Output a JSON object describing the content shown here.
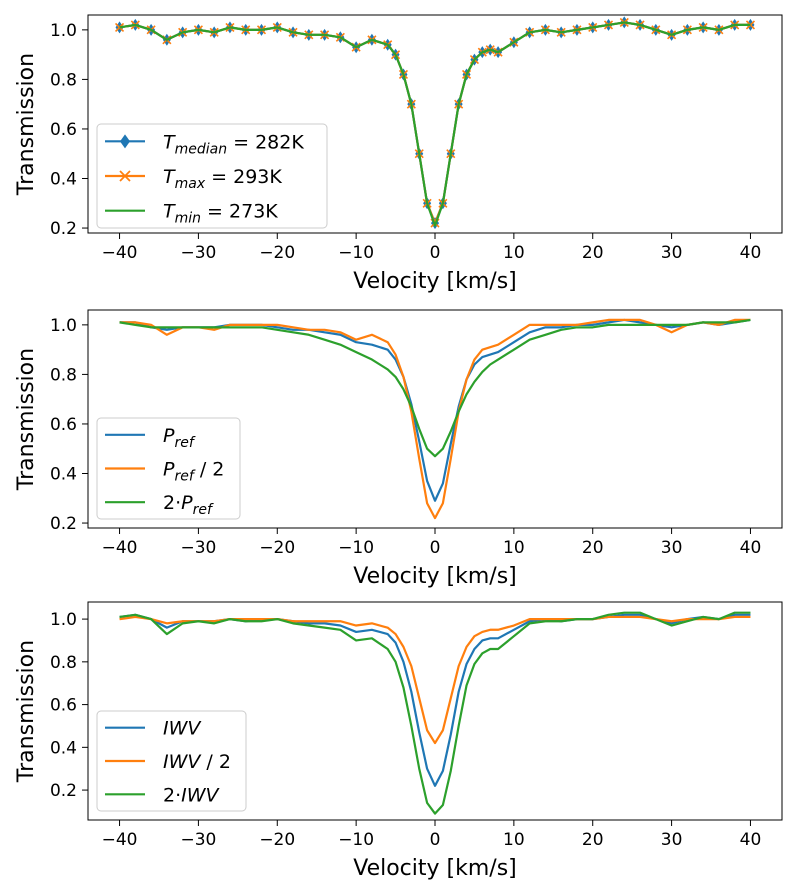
{
  "colors": {
    "blue": "#1f77b4",
    "orange": "#ff7f0e",
    "green": "#2ca02c"
  },
  "chart_data": [
    {
      "type": "line",
      "title": "",
      "xlabel": "Velocity [km/s]",
      "ylabel": "Transmission",
      "xlim": [
        -44,
        44
      ],
      "ylim": [
        0.18,
        1.06
      ],
      "xticks": [
        -40,
        -30,
        -20,
        -10,
        0,
        10,
        20,
        30,
        40
      ],
      "yticks": [
        0.2,
        0.4,
        0.6,
        0.8,
        1.0
      ],
      "ytick_labels": [
        "0.2",
        "0.4",
        "0.6",
        "0.8",
        "1.0"
      ],
      "legend_loc": "lower-left",
      "x": [
        -40,
        -38,
        -36,
        -34,
        -32,
        -30,
        -28,
        -26,
        -24,
        -22,
        -20,
        -18,
        -16,
        -14,
        -12,
        -10,
        -8,
        -6,
        -5,
        -4,
        -3,
        -2,
        -1,
        0,
        1,
        2,
        3,
        4,
        5,
        6,
        7,
        8,
        10,
        12,
        14,
        16,
        18,
        20,
        22,
        24,
        26,
        28,
        30,
        32,
        34,
        36,
        38,
        40
      ],
      "series": [
        {
          "name": "median",
          "label_main": "T",
          "label_sub": "median",
          "label_rest": " = 282K",
          "color": "#1f77b4",
          "marker": "diamond",
          "values": [
            1.01,
            1.02,
            1.0,
            0.96,
            0.99,
            1.0,
            0.99,
            1.01,
            1.0,
            1.0,
            1.01,
            0.99,
            0.98,
            0.98,
            0.97,
            0.93,
            0.96,
            0.94,
            0.9,
            0.82,
            0.7,
            0.5,
            0.3,
            0.22,
            0.3,
            0.5,
            0.7,
            0.82,
            0.88,
            0.91,
            0.92,
            0.91,
            0.95,
            0.99,
            1.0,
            0.99,
            1.0,
            1.01,
            1.02,
            1.03,
            1.02,
            1.0,
            0.98,
            1.0,
            1.01,
            1.0,
            1.02,
            1.02
          ]
        },
        {
          "name": "max",
          "label_main": "T",
          "label_sub": "max",
          "label_rest": " = 293K",
          "color": "#ff7f0e",
          "marker": "x",
          "values": [
            1.01,
            1.02,
            1.0,
            0.96,
            0.99,
            1.0,
            0.99,
            1.01,
            1.0,
            1.0,
            1.01,
            0.99,
            0.98,
            0.98,
            0.97,
            0.93,
            0.96,
            0.94,
            0.9,
            0.82,
            0.7,
            0.5,
            0.3,
            0.22,
            0.3,
            0.5,
            0.7,
            0.82,
            0.88,
            0.91,
            0.92,
            0.91,
            0.95,
            0.99,
            1.0,
            0.99,
            1.0,
            1.01,
            1.02,
            1.03,
            1.02,
            1.0,
            0.98,
            1.0,
            1.01,
            1.0,
            1.02,
            1.02
          ]
        },
        {
          "name": "min",
          "label_main": "T",
          "label_sub": "min",
          "label_rest": " = 273K",
          "color": "#2ca02c",
          "marker": "none",
          "values": [
            1.01,
            1.02,
            1.0,
            0.96,
            0.99,
            1.0,
            0.99,
            1.01,
            1.0,
            1.0,
            1.01,
            0.99,
            0.98,
            0.98,
            0.97,
            0.93,
            0.96,
            0.94,
            0.9,
            0.82,
            0.7,
            0.5,
            0.3,
            0.21,
            0.3,
            0.5,
            0.7,
            0.82,
            0.88,
            0.91,
            0.92,
            0.91,
            0.95,
            0.99,
            1.0,
            0.99,
            1.0,
            1.01,
            1.02,
            1.03,
            1.02,
            1.0,
            0.98,
            1.0,
            1.01,
            1.0,
            1.02,
            1.02
          ]
        }
      ]
    },
    {
      "type": "line",
      "title": "",
      "xlabel": "Velocity [km/s]",
      "ylabel": "Transmission",
      "xlim": [
        -44,
        44
      ],
      "ylim": [
        0.18,
        1.06
      ],
      "xticks": [
        -40,
        -30,
        -20,
        -10,
        0,
        10,
        20,
        30,
        40
      ],
      "yticks": [
        0.2,
        0.4,
        0.6,
        0.8,
        1.0
      ],
      "ytick_labels": [
        "0.2",
        "0.4",
        "0.6",
        "0.8",
        "1.0"
      ],
      "legend_loc": "lower-left",
      "x": [
        -40,
        -38,
        -36,
        -34,
        -32,
        -30,
        -28,
        -26,
        -24,
        -22,
        -20,
        -18,
        -16,
        -14,
        -12,
        -10,
        -8,
        -6,
        -5,
        -4,
        -3,
        -2,
        -1,
        0,
        1,
        2,
        3,
        4,
        5,
        6,
        7,
        8,
        10,
        12,
        14,
        16,
        18,
        20,
        22,
        24,
        26,
        28,
        30,
        32,
        34,
        36,
        38,
        40
      ],
      "series": [
        {
          "name": "P_ref",
          "label_main": "P",
          "label_sub": "ref",
          "label_rest": "",
          "color": "#1f77b4",
          "marker": "none",
          "values": [
            1.01,
            1.01,
            0.99,
            0.98,
            0.99,
            0.99,
            0.99,
            1.0,
            1.0,
            1.0,
            0.99,
            0.98,
            0.98,
            0.97,
            0.96,
            0.93,
            0.92,
            0.9,
            0.86,
            0.79,
            0.68,
            0.53,
            0.37,
            0.29,
            0.36,
            0.52,
            0.67,
            0.78,
            0.84,
            0.87,
            0.88,
            0.89,
            0.93,
            0.97,
            0.99,
            0.99,
            1.0,
            1.0,
            1.01,
            1.02,
            1.01,
            1.0,
            0.99,
            1.0,
            1.01,
            1.0,
            1.01,
            1.02
          ]
        },
        {
          "name": "P_ref/2",
          "label_main": "P",
          "label_sub": "ref",
          "label_rest": " / 2",
          "color": "#ff7f0e",
          "marker": "none",
          "values": [
            1.01,
            1.01,
            1.0,
            0.96,
            0.99,
            0.99,
            0.98,
            1.0,
            1.0,
            1.0,
            1.0,
            0.99,
            0.98,
            0.98,
            0.97,
            0.94,
            0.96,
            0.93,
            0.88,
            0.79,
            0.65,
            0.46,
            0.28,
            0.22,
            0.28,
            0.46,
            0.65,
            0.78,
            0.86,
            0.9,
            0.91,
            0.92,
            0.96,
            1.0,
            1.0,
            1.0,
            1.0,
            1.01,
            1.02,
            1.02,
            1.02,
            1.0,
            0.97,
            1.0,
            1.01,
            1.0,
            1.02,
            1.02
          ]
        },
        {
          "name": "2*P_ref",
          "label_main": "2·P",
          "label_sub": "ref",
          "label_rest": "",
          "color": "#2ca02c",
          "marker": "none",
          "values": [
            1.01,
            1.0,
            0.99,
            0.99,
            0.99,
            0.99,
            0.99,
            0.99,
            0.99,
            0.99,
            0.98,
            0.97,
            0.96,
            0.94,
            0.92,
            0.89,
            0.86,
            0.82,
            0.79,
            0.74,
            0.67,
            0.58,
            0.5,
            0.47,
            0.5,
            0.57,
            0.65,
            0.72,
            0.77,
            0.81,
            0.84,
            0.86,
            0.9,
            0.94,
            0.96,
            0.98,
            0.99,
            0.99,
            1.0,
            1.0,
            1.0,
            1.0,
            1.0,
            1.0,
            1.01,
            1.01,
            1.01,
            1.02
          ]
        }
      ]
    },
    {
      "type": "line",
      "title": "",
      "xlabel": "Velocity [km/s]",
      "ylabel": "Transmission",
      "xlim": [
        -44,
        44
      ],
      "ylim": [
        0.06,
        1.08
      ],
      "xticks": [
        -40,
        -30,
        -20,
        -10,
        0,
        10,
        20,
        30,
        40
      ],
      "yticks": [
        0.2,
        0.4,
        0.6,
        0.8,
        1.0
      ],
      "ytick_labels": [
        "0.2",
        "0.4",
        "0.6",
        "0.8",
        "1.0"
      ],
      "legend_loc": "lower-left",
      "x": [
        -40,
        -38,
        -36,
        -34,
        -32,
        -30,
        -28,
        -26,
        -24,
        -22,
        -20,
        -18,
        -16,
        -14,
        -12,
        -10,
        -8,
        -6,
        -5,
        -4,
        -3,
        -2,
        -1,
        0,
        1,
        2,
        3,
        4,
        5,
        6,
        7,
        8,
        10,
        12,
        14,
        16,
        18,
        20,
        22,
        24,
        26,
        28,
        30,
        32,
        34,
        36,
        38,
        40
      ],
      "series": [
        {
          "name": "IWV",
          "label_main": "IWV",
          "label_sub": "",
          "label_rest": "",
          "color": "#1f77b4",
          "marker": "none",
          "values": [
            1.01,
            1.02,
            1.0,
            0.96,
            0.99,
            0.99,
            0.99,
            1.0,
            0.99,
            1.0,
            1.0,
            0.99,
            0.98,
            0.98,
            0.97,
            0.94,
            0.95,
            0.93,
            0.89,
            0.8,
            0.66,
            0.47,
            0.3,
            0.22,
            0.29,
            0.46,
            0.66,
            0.79,
            0.86,
            0.9,
            0.91,
            0.91,
            0.95,
            0.99,
            1.0,
            0.99,
            1.0,
            1.0,
            1.01,
            1.02,
            1.02,
            1.0,
            0.98,
            1.0,
            1.01,
            1.0,
            1.02,
            1.02
          ]
        },
        {
          "name": "IWV/2",
          "label_main": "IWV",
          "label_sub": "",
          "label_rest": " / 2",
          "color": "#ff7f0e",
          "marker": "none",
          "values": [
            1.0,
            1.01,
            1.0,
            0.98,
            0.99,
            0.99,
            0.99,
            1.0,
            1.0,
            1.0,
            1.0,
            0.99,
            0.99,
            0.99,
            0.99,
            0.97,
            0.98,
            0.96,
            0.93,
            0.87,
            0.78,
            0.63,
            0.48,
            0.42,
            0.48,
            0.63,
            0.78,
            0.87,
            0.92,
            0.94,
            0.95,
            0.95,
            0.97,
            1.0,
            1.0,
            1.0,
            1.0,
            1.0,
            1.01,
            1.01,
            1.01,
            1.0,
            0.99,
            1.0,
            1.0,
            1.0,
            1.01,
            1.01
          ]
        },
        {
          "name": "2*IWV",
          "label_main": "2·IWV",
          "label_sub": "",
          "label_rest": "",
          "color": "#2ca02c",
          "marker": "none",
          "values": [
            1.01,
            1.02,
            1.0,
            0.93,
            0.98,
            0.99,
            0.98,
            1.0,
            0.99,
            0.99,
            1.0,
            0.98,
            0.97,
            0.96,
            0.95,
            0.9,
            0.91,
            0.86,
            0.8,
            0.68,
            0.5,
            0.3,
            0.14,
            0.09,
            0.13,
            0.29,
            0.5,
            0.69,
            0.79,
            0.84,
            0.86,
            0.86,
            0.92,
            0.98,
            0.99,
            0.99,
            1.0,
            1.0,
            1.02,
            1.03,
            1.03,
            1.0,
            0.97,
            0.99,
            1.01,
            1.0,
            1.03,
            1.03
          ]
        }
      ]
    }
  ]
}
